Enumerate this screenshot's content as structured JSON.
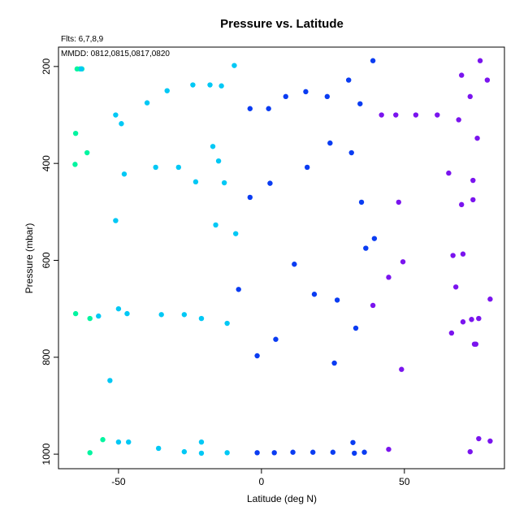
{
  "chart_data": {
    "type": "scatter",
    "title": "Pressure vs. Latitude",
    "subtitle": "Flts: 6,7,8,9",
    "annotation": "MMDD: 0812,0815,0817,0820",
    "xlabel": "Latitude (deg N)",
    "ylabel": "Pressure (mbar)",
    "xlim": [
      -71,
      85
    ],
    "ylim": [
      1030,
      160
    ],
    "y_reversed": true,
    "x_ticks": [
      -50,
      0,
      50
    ],
    "x_tick_labels": [
      "-50",
      "0",
      "50"
    ],
    "y_ticks": [
      200,
      400,
      600,
      800,
      1000
    ],
    "y_tick_labels": [
      "200",
      "400",
      "600",
      "800",
      "1000"
    ],
    "grid": false,
    "legend": "none",
    "series": [
      {
        "color": "#00f5a0",
        "x": [
          -64.5,
          -63.5,
          -62.8,
          -65,
          -61,
          -65.2,
          -65,
          -60,
          -55.5,
          -60
        ],
        "y": [
          205,
          205,
          205,
          338,
          378,
          402,
          710,
          720,
          970,
          997
        ]
      },
      {
        "color": "#00c8f5",
        "x": [
          -63,
          -51,
          -49,
          -48,
          -51,
          -57,
          -50,
          -47,
          -53,
          -46.5,
          -50,
          -40,
          -33,
          -24,
          -18,
          -14,
          -9.5,
          -37,
          -29,
          -23,
          -17,
          -15,
          -13,
          -16,
          -9,
          -35,
          -27,
          -21,
          -12,
          -36,
          -27,
          -21,
          -21,
          -12
        ],
        "y": [
          205,
          300,
          318,
          422,
          518,
          715,
          700,
          710,
          848,
          975,
          975,
          275,
          250,
          238,
          238,
          240,
          198,
          408,
          408,
          438,
          365,
          395,
          440,
          527,
          545,
          712,
          712,
          720,
          730,
          988,
          995,
          998,
          975,
          997
        ]
      },
      {
        "color": "#0a3cf2",
        "x": [
          -4,
          2.5,
          8.5,
          15.5,
          23,
          30.5,
          39,
          34.5,
          -4,
          3,
          16,
          24,
          31.5,
          35,
          36.5,
          39.5,
          11.5,
          -8,
          18.5,
          26.5,
          33,
          5,
          -1.5,
          25.5,
          -1.5,
          4.5,
          11,
          18,
          25,
          32,
          32.5,
          36
        ],
        "y": [
          287,
          287,
          262,
          252,
          262,
          228,
          188,
          277,
          470,
          441,
          408,
          358,
          378,
          480,
          575,
          555,
          608,
          660,
          670,
          682,
          740,
          763,
          797,
          812,
          997,
          997,
          996,
          996,
          996,
          976,
          998,
          996
        ]
      },
      {
        "color": "#7a14ee",
        "x": [
          42,
          47,
          54,
          61.5,
          69,
          75.5,
          76.5,
          79,
          70,
          73,
          48,
          65.5,
          74,
          74,
          70,
          74.5,
          39,
          44.5,
          49.5,
          49,
          67,
          68,
          70.5,
          66.5,
          70.5,
          73.5,
          76,
          75,
          80,
          44.5,
          73,
          76,
          80
        ],
        "y": [
          300,
          300,
          300,
          300,
          310,
          348,
          188,
          228,
          218,
          262,
          480,
          420,
          435,
          475,
          485,
          773,
          693,
          635,
          603,
          825,
          590,
          655,
          587,
          750,
          727,
          722,
          720,
          773,
          680,
          990,
          995,
          968,
          973
        ]
      }
    ]
  }
}
